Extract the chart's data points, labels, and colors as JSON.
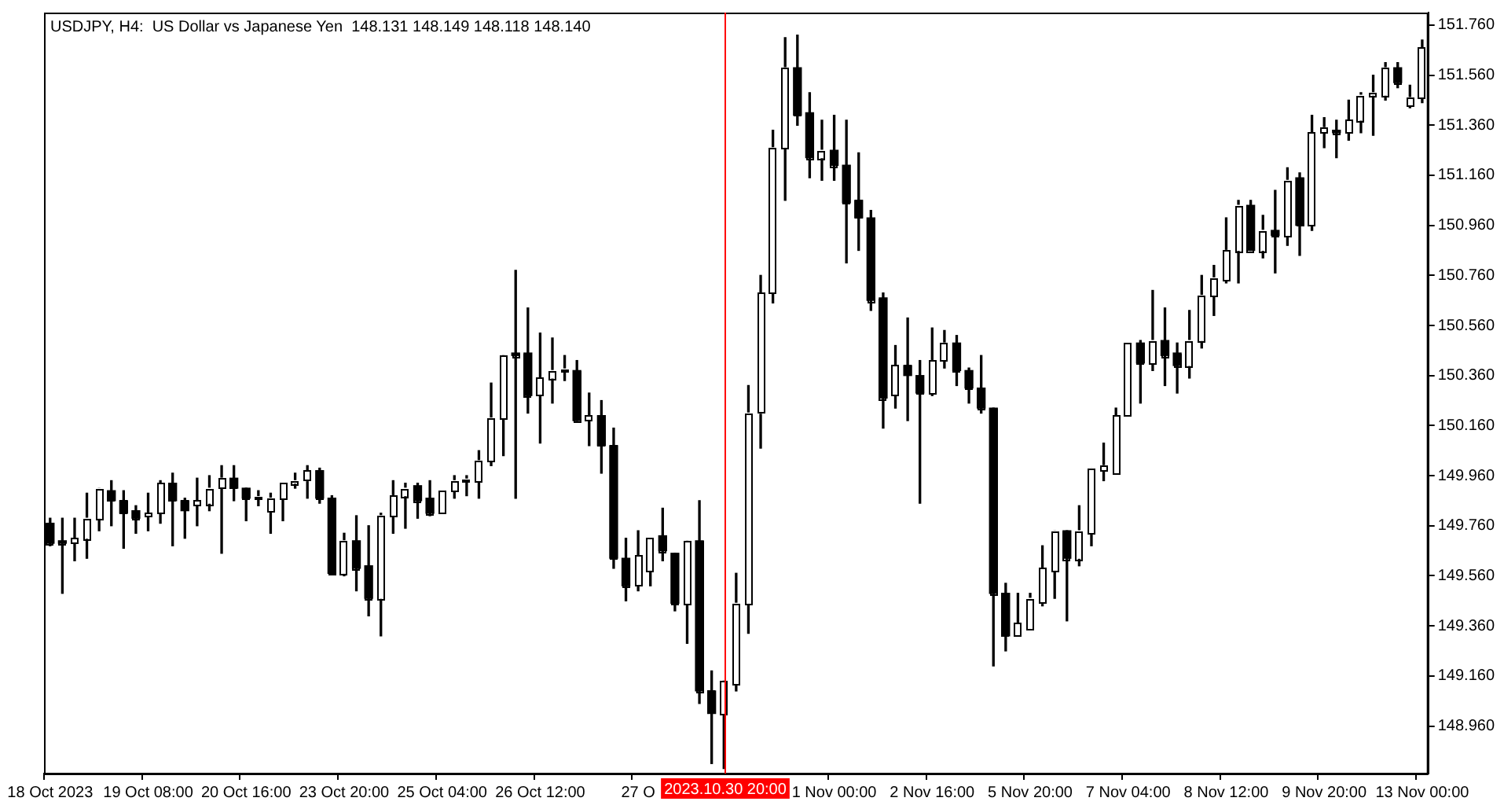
{
  "chart_data": {
    "type": "candlestick",
    "title": "USDJPY, H4:  US Dollar vs Japanese Yen  148.131 148.149 148.118 148.140",
    "categories": [
      "18 Oct 2023",
      null,
      null,
      null,
      null,
      null,
      null,
      null,
      "19 Oct 08:00",
      null,
      null,
      null,
      null,
      null,
      null,
      null,
      "20 Oct 16:00",
      null,
      null,
      null,
      null,
      null,
      null,
      null,
      "23 Oct 20:00",
      null,
      null,
      null,
      null,
      null,
      null,
      null,
      "25 Oct 04:00",
      null,
      null,
      null,
      null,
      null,
      null,
      null,
      "26 Oct 12:00",
      null,
      null,
      null,
      null,
      null,
      null,
      null,
      "27 O",
      null,
      null,
      null,
      null,
      null,
      null,
      "2023.10.30 20:00",
      null,
      null,
      null,
      null,
      null,
      null,
      null,
      null,
      "1 Nov 00:00",
      null,
      null,
      null,
      null,
      null,
      null,
      null,
      "2 Nov 16:00",
      null,
      null,
      null,
      null,
      null,
      null,
      null,
      "5 Nov 20:00",
      null,
      null,
      null,
      null,
      null,
      null,
      null,
      "7 Nov 04:00",
      null,
      null,
      null,
      null,
      null,
      null,
      null,
      "8 Nov 12:00",
      null,
      null,
      null,
      null,
      null,
      null,
      null,
      "9 Nov 20:00",
      null,
      null,
      null,
      null,
      null,
      null,
      null,
      "13 Nov 00:00"
    ],
    "ohlc": [
      [
        149.77,
        149.79,
        149.68,
        149.69
      ],
      [
        149.7,
        149.79,
        149.49,
        149.69
      ],
      [
        149.69,
        149.79,
        149.62,
        149.71
      ],
      [
        149.71,
        149.89,
        149.63,
        149.79
      ],
      [
        149.79,
        149.91,
        149.74,
        149.91
      ],
      [
        149.9,
        149.94,
        149.76,
        149.86
      ],
      [
        149.86,
        149.9,
        149.67,
        149.81
      ],
      [
        149.82,
        149.84,
        149.73,
        149.79
      ],
      [
        149.8,
        149.89,
        149.74,
        149.81
      ],
      [
        149.81,
        149.94,
        149.77,
        149.93
      ],
      [
        149.93,
        149.97,
        149.68,
        149.86
      ],
      [
        149.86,
        149.87,
        149.71,
        149.82
      ],
      [
        149.84,
        149.95,
        149.76,
        149.86
      ],
      [
        149.85,
        149.96,
        149.82,
        149.91
      ],
      [
        149.91,
        150.0,
        149.65,
        149.95
      ],
      [
        149.95,
        150.0,
        149.86,
        149.91
      ],
      [
        149.91,
        149.91,
        149.78,
        149.87
      ],
      [
        149.87,
        149.9,
        149.84,
        149.87
      ],
      [
        149.82,
        149.89,
        149.73,
        149.87
      ],
      [
        149.87,
        149.93,
        149.78,
        149.93
      ],
      [
        149.93,
        149.97,
        149.91,
        149.94
      ],
      [
        149.94,
        150.0,
        149.87,
        149.98
      ],
      [
        149.98,
        149.99,
        149.85,
        149.87
      ],
      [
        149.87,
        149.88,
        149.57,
        149.57
      ],
      [
        149.57,
        149.73,
        149.56,
        149.7
      ],
      [
        149.7,
        149.8,
        149.5,
        149.59
      ],
      [
        149.6,
        149.76,
        149.4,
        149.47
      ],
      [
        149.47,
        149.81,
        149.32,
        149.8
      ],
      [
        149.8,
        149.94,
        149.73,
        149.88
      ],
      [
        149.88,
        149.93,
        149.75,
        149.91
      ],
      [
        149.92,
        149.93,
        149.79,
        149.86
      ],
      [
        149.87,
        149.94,
        149.8,
        149.81
      ],
      [
        149.81,
        149.9,
        149.81,
        149.9
      ],
      [
        149.9,
        149.96,
        149.87,
        149.94
      ],
      [
        149.94,
        149.96,
        149.88,
        149.94
      ],
      [
        149.94,
        150.06,
        149.87,
        150.02
      ],
      [
        150.02,
        150.33,
        150.0,
        150.19
      ],
      [
        150.19,
        150.44,
        150.04,
        150.44
      ],
      [
        150.45,
        150.78,
        149.87,
        150.44
      ],
      [
        150.45,
        150.63,
        150.21,
        150.28
      ],
      [
        150.28,
        150.53,
        150.09,
        150.35
      ],
      [
        150.35,
        150.51,
        150.25,
        150.38
      ],
      [
        150.38,
        150.44,
        150.34,
        150.38
      ],
      [
        150.38,
        150.42,
        150.18,
        150.18
      ],
      [
        150.18,
        150.29,
        150.08,
        150.2
      ],
      [
        150.2,
        150.26,
        149.97,
        150.08
      ],
      [
        150.08,
        150.15,
        149.59,
        149.63
      ],
      [
        149.63,
        149.71,
        149.46,
        149.52
      ],
      [
        149.52,
        149.74,
        149.5,
        149.64
      ],
      [
        149.58,
        149.71,
        149.52,
        149.71
      ],
      [
        149.72,
        149.83,
        149.62,
        149.66
      ],
      [
        149.65,
        149.65,
        149.42,
        149.45
      ],
      [
        149.45,
        149.7,
        149.29,
        149.7
      ],
      [
        149.7,
        149.86,
        149.05,
        149.1
      ],
      [
        149.1,
        149.18,
        148.81,
        149.01
      ],
      [
        149.01,
        149.14,
        148.79,
        149.14
      ],
      [
        149.13,
        149.57,
        149.1,
        149.45
      ],
      [
        149.45,
        150.32,
        149.33,
        150.21
      ],
      [
        150.21,
        150.76,
        150.07,
        150.69
      ],
      [
        150.69,
        151.34,
        150.65,
        151.27
      ],
      [
        151.27,
        151.71,
        151.06,
        151.59
      ],
      [
        151.59,
        151.72,
        151.36,
        151.4
      ],
      [
        151.41,
        151.49,
        151.15,
        151.23
      ],
      [
        151.23,
        151.38,
        151.14,
        151.26
      ],
      [
        151.26,
        151.4,
        151.14,
        151.2
      ],
      [
        151.2,
        151.38,
        150.81,
        151.05
      ],
      [
        151.06,
        151.25,
        150.86,
        150.99
      ],
      [
        150.99,
        151.02,
        150.62,
        150.66
      ],
      [
        150.67,
        150.69,
        150.15,
        150.27
      ],
      [
        150.28,
        150.48,
        150.23,
        150.4
      ],
      [
        150.4,
        150.59,
        150.18,
        150.36
      ],
      [
        150.36,
        150.42,
        149.85,
        150.29
      ],
      [
        150.29,
        150.55,
        150.28,
        150.42
      ],
      [
        150.42,
        150.54,
        150.39,
        150.49
      ],
      [
        150.49,
        150.52,
        150.32,
        150.38
      ],
      [
        150.38,
        150.39,
        150.25,
        150.31
      ],
      [
        150.31,
        150.44,
        150.21,
        150.23
      ],
      [
        150.23,
        150.23,
        149.2,
        149.49
      ],
      [
        149.49,
        149.53,
        149.26,
        149.32
      ],
      [
        149.32,
        149.49,
        149.32,
        149.37
      ],
      [
        149.35,
        149.49,
        149.35,
        149.47
      ],
      [
        149.45,
        149.68,
        149.44,
        149.59
      ],
      [
        149.58,
        149.74,
        149.47,
        149.74
      ],
      [
        149.74,
        149.74,
        149.38,
        149.63
      ],
      [
        149.63,
        149.84,
        149.6,
        149.74
      ],
      [
        149.73,
        149.99,
        149.68,
        149.99
      ],
      [
        149.98,
        150.09,
        149.94,
        150.0
      ],
      [
        149.97,
        150.23,
        149.97,
        150.2
      ],
      [
        150.2,
        150.49,
        150.2,
        150.49
      ],
      [
        150.49,
        150.5,
        150.25,
        150.41
      ],
      [
        150.41,
        150.7,
        150.38,
        150.5
      ],
      [
        150.5,
        150.63,
        150.32,
        150.44
      ],
      [
        150.45,
        150.49,
        150.29,
        150.4
      ],
      [
        150.4,
        150.62,
        150.35,
        150.5
      ],
      [
        150.5,
        150.76,
        150.47,
        150.68
      ],
      [
        150.68,
        150.8,
        150.6,
        150.75
      ],
      [
        150.74,
        150.99,
        150.73,
        150.86
      ],
      [
        150.86,
        151.06,
        150.73,
        151.04
      ],
      [
        151.04,
        151.06,
        150.86,
        150.86
      ],
      [
        150.86,
        151.0,
        150.83,
        150.94
      ],
      [
        150.94,
        151.1,
        150.77,
        150.92
      ],
      [
        150.92,
        151.19,
        150.88,
        151.14
      ],
      [
        151.15,
        151.17,
        150.84,
        150.96
      ],
      [
        150.96,
        151.4,
        150.94,
        151.33
      ],
      [
        151.33,
        151.39,
        151.27,
        151.35
      ],
      [
        151.34,
        151.38,
        151.23,
        151.33
      ],
      [
        151.33,
        151.46,
        151.3,
        151.38
      ],
      [
        151.38,
        151.49,
        151.33,
        151.48
      ],
      [
        151.48,
        151.56,
        151.32,
        151.49
      ],
      [
        151.48,
        151.61,
        151.46,
        151.59
      ],
      [
        151.59,
        151.61,
        151.51,
        151.53
      ],
      [
        151.44,
        151.52,
        151.43,
        151.47
      ],
      [
        151.47,
        151.7,
        151.45,
        151.67
      ]
    ],
    "colors": [
      "#000000",
      "#000000",
      "#ffffff",
      "#ffffff",
      "#ffffff",
      "#000000",
      "#000000",
      "#000000",
      "#ffffff",
      "#ffffff",
      "#000000",
      "#000000",
      "#ffffff",
      "#ffffff",
      "#ffffff",
      "#000000",
      "#000000",
      "#ffffff",
      "#ffffff",
      "#ffffff",
      "#ffffff",
      "#ffffff",
      "#000000",
      "#000000",
      "#ffffff",
      "#000000",
      "#000000",
      "#ffffff",
      "#ffffff",
      "#ffffff",
      "#000000",
      "#000000",
      "#ffffff",
      "#ffffff",
      "#ffffff",
      "#ffffff",
      "#ffffff",
      "#ffffff",
      "#000000",
      "#000000",
      "#ffffff",
      "#ffffff",
      "#ffffff",
      "#000000",
      "#ffffff",
      "#000000",
      "#000000",
      "#000000",
      "#ffffff",
      "#ffffff",
      "#000000",
      "#000000",
      "#ffffff",
      "#000000",
      "#000000",
      "#ffffff",
      "#ffffff",
      "#ffffff",
      "#ffffff",
      "#ffffff",
      "#ffffff",
      "#000000",
      "#000000",
      "#ffffff",
      "#000000",
      "#000000",
      "#000000",
      "#000000",
      "#000000",
      "#ffffff",
      "#000000",
      "#000000",
      "#ffffff",
      "#ffffff",
      "#000000",
      "#000000",
      "#000000",
      "#000000",
      "#000000",
      "#ffffff",
      "#ffffff",
      "#ffffff",
      "#ffffff",
      "#000000",
      "#ffffff",
      "#ffffff",
      "#ffffff",
      "#ffffff",
      "#ffffff",
      "#000000",
      "#ffffff",
      "#000000",
      "#000000",
      "#ffffff",
      "#ffffff",
      "#ffffff",
      "#ffffff",
      "#ffffff",
      "#000000",
      "#ffffff",
      "#000000",
      "#ffffff",
      "#000000",
      "#ffffff",
      "#ffffff",
      "#000000",
      "#ffffff",
      "#ffffff",
      "#ffffff",
      "#ffffff",
      "#000000",
      "#ffffff",
      "#ffffff"
    ],
    "ylim": [
      148.77,
      151.81
    ],
    "yticks": [
      {
        "value": 148.96,
        "label": "148.960"
      },
      {
        "value": 149.16,
        "label": "149.160"
      },
      {
        "value": 149.36,
        "label": "149.360"
      },
      {
        "value": 149.56,
        "label": "149.560"
      },
      {
        "value": 149.76,
        "label": "149.760"
      },
      {
        "value": 149.96,
        "label": "149.960"
      },
      {
        "value": 150.16,
        "label": "150.160"
      },
      {
        "value": 150.36,
        "label": "150.360"
      },
      {
        "value": 150.56,
        "label": "150.560"
      },
      {
        "value": 150.76,
        "label": "150.760"
      },
      {
        "value": 150.96,
        "label": "150.960"
      },
      {
        "value": 151.16,
        "label": "151.160"
      },
      {
        "value": 151.36,
        "label": "151.360"
      },
      {
        "value": 151.56,
        "label": "151.560"
      },
      {
        "value": 151.76,
        "label": "151.760"
      }
    ],
    "ref_lines": [
      {
        "axis": "x",
        "value": "2023.10.30 20:00",
        "color": "#ff0000"
      }
    ]
  }
}
